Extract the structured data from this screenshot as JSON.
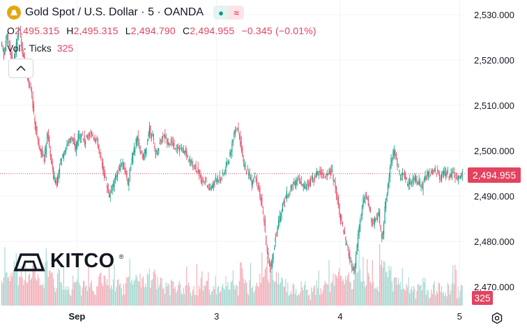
{
  "header": {
    "symbol_title": "Gold Spot / U.S. Dollar · 5 · OANDA",
    "ohlc": {
      "open_label": "O",
      "open": "2,495.315",
      "high_label": "H",
      "high": "2,495.315",
      "low_label": "L",
      "low": "2,494.790",
      "close_label": "C",
      "close": "2,494.955",
      "change": "−0.345 (−0.01%)"
    },
    "volume_label": "Vol · Ticks",
    "volume_value": "325"
  },
  "logo": {
    "text": "KITCO",
    "reg": "®"
  },
  "colors": {
    "up": "#089981",
    "down": "#e3435f",
    "grid": "#f0f3fa",
    "price_line": "#e3435f",
    "text": "#131722",
    "vol_up": "#9fd6ce",
    "vol_down": "#f5a6b2"
  },
  "price_tag": "2,494.955",
  "volume_tag": "325",
  "chart_data": {
    "type": "candlestick",
    "title": "Gold Spot / U.S. Dollar · 5 · OANDA",
    "ylim": [
      2464,
      2532
    ],
    "y_ticks": [
      2530,
      2520,
      2510,
      2500,
      2490,
      2480,
      2470
    ],
    "y_tick_labels": [
      "2,530.000",
      "2,520.000",
      "2,510.000",
      "2,500.000",
      "2,490.000",
      "2,480.000",
      "2,470.000"
    ],
    "x_ticks": [
      {
        "label": "Sep",
        "index": 38
      },
      {
        "label": "3",
        "index": 107
      },
      {
        "label": "4",
        "index": 168
      },
      {
        "label": "5",
        "index": 227
      }
    ],
    "last_price": 2494.955,
    "series": [
      {
        "name": "price_path",
        "values": [
          2524,
          2521,
          2526,
          2522,
          2518,
          2524,
          2527,
          2522,
          2519,
          2515,
          2512,
          2506,
          2502,
          2500,
          2498,
          2504,
          2499,
          2494,
          2493,
          2497,
          2499,
          2501,
          2502,
          2503,
          2500,
          2503,
          2504,
          2502,
          2503,
          2504,
          2503,
          2502,
          2499,
          2496,
          2493,
          2490,
          2492,
          2494,
          2496,
          2497,
          2496,
          2493,
          2497,
          2500,
          2503,
          2500,
          2498,
          2501,
          2505,
          2503,
          2499,
          2501,
          2503,
          2503,
          2502,
          2502,
          2501,
          2501,
          2500,
          2500,
          2499,
          2498,
          2497,
          2496,
          2495,
          2493,
          2494,
          2491,
          2492,
          2493,
          2494,
          2494,
          2495,
          2497,
          2499,
          2503,
          2505,
          2504,
          2498,
          2496,
          2495,
          2493,
          2494,
          2492,
          2489,
          2484,
          2477,
          2474,
          2478,
          2482,
          2485,
          2488,
          2490,
          2491,
          2492,
          2493,
          2494,
          2493,
          2492,
          2493,
          2493,
          2494,
          2495,
          2495,
          2495,
          2494,
          2496,
          2495,
          2492,
          2488,
          2484,
          2481,
          2478,
          2475,
          2473,
          2479,
          2485,
          2489,
          2490,
          2487,
          2484,
          2485,
          2486,
          2480,
          2487,
          2492,
          2498,
          2500,
          2497,
          2494,
          2495,
          2493,
          2493,
          2494,
          2494,
          2493,
          2492,
          2494,
          2495,
          2495,
          2496,
          2495,
          2494,
          2495,
          2495,
          2494,
          2495,
          2494,
          2494,
          2494.955
        ]
      }
    ],
    "volume": {
      "name": "Vol · Ticks",
      "last": 325
    }
  }
}
